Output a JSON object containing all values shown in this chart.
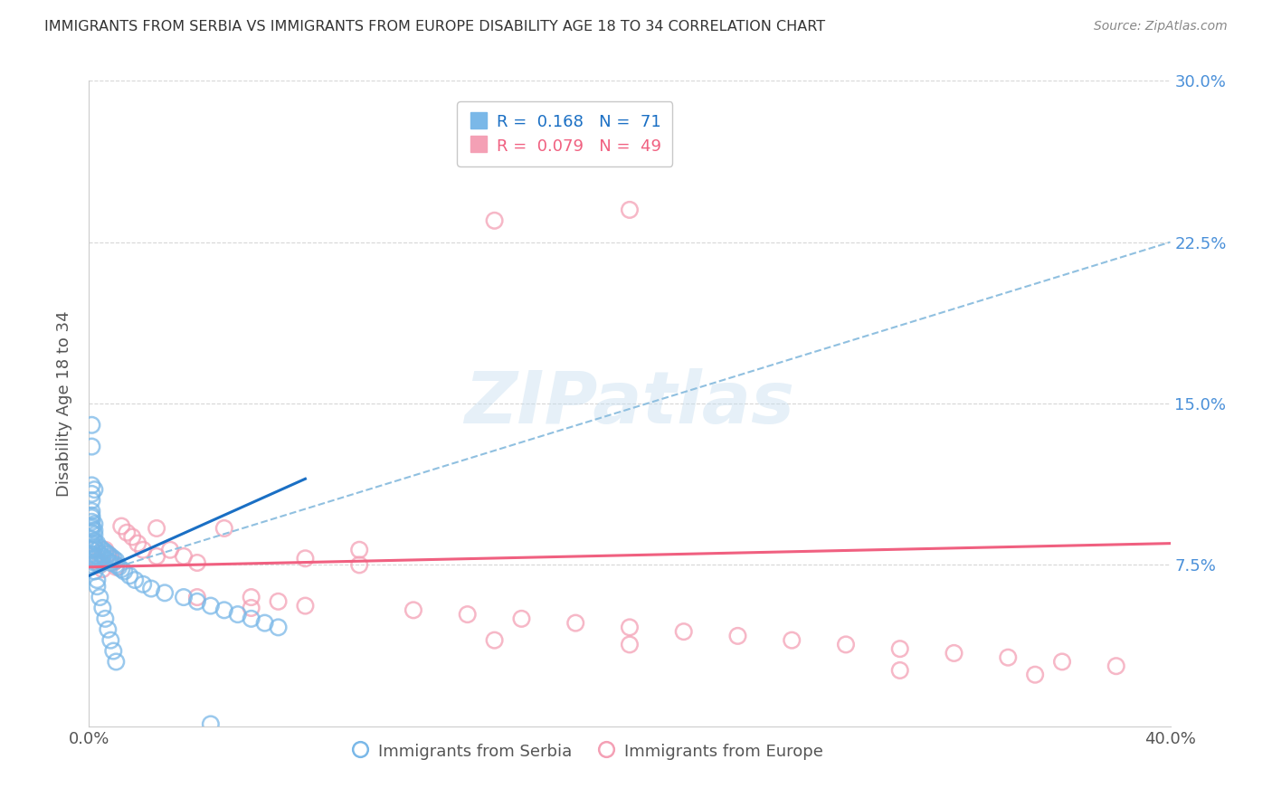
{
  "title": "IMMIGRANTS FROM SERBIA VS IMMIGRANTS FROM EUROPE DISABILITY AGE 18 TO 34 CORRELATION CHART",
  "source": "Source: ZipAtlas.com",
  "ylabel": "Disability Age 18 to 34",
  "xlim": [
    0.0,
    0.4
  ],
  "ylim": [
    0.0,
    0.3
  ],
  "serbia_R": 0.168,
  "serbia_N": 71,
  "europe_R": 0.079,
  "europe_N": 49,
  "serbia_color": "#7ab8e8",
  "europe_color": "#f4a0b5",
  "serbia_line_color": "#1a6fc4",
  "europe_line_color": "#f06080",
  "dashed_line_color": "#90c0e0",
  "background_color": "#ffffff",
  "grid_color": "#cccccc",
  "tick_label_color_right": "#4a90d9",
  "watermark": "ZIPatlas",
  "serbia_x": [
    0.001,
    0.001,
    0.001,
    0.001,
    0.001,
    0.001,
    0.001,
    0.001,
    0.001,
    0.001,
    0.001,
    0.001,
    0.001,
    0.001,
    0.001,
    0.002,
    0.002,
    0.002,
    0.002,
    0.002,
    0.002,
    0.002,
    0.003,
    0.003,
    0.003,
    0.003,
    0.004,
    0.004,
    0.004,
    0.005,
    0.005,
    0.005,
    0.006,
    0.006,
    0.007,
    0.007,
    0.008,
    0.008,
    0.009,
    0.01,
    0.01,
    0.011,
    0.012,
    0.013,
    0.015,
    0.017,
    0.02,
    0.023,
    0.028,
    0.035,
    0.04,
    0.045,
    0.05,
    0.055,
    0.06,
    0.065,
    0.07,
    0.001,
    0.001,
    0.002,
    0.002,
    0.003,
    0.003,
    0.004,
    0.005,
    0.006,
    0.007,
    0.008,
    0.009,
    0.01,
    0.045
  ],
  "serbia_y": [
    0.085,
    0.087,
    0.09,
    0.092,
    0.093,
    0.095,
    0.097,
    0.098,
    0.1,
    0.105,
    0.108,
    0.112,
    0.08,
    0.082,
    0.075,
    0.083,
    0.086,
    0.089,
    0.091,
    0.094,
    0.078,
    0.076,
    0.085,
    0.082,
    0.079,
    0.076,
    0.083,
    0.08,
    0.077,
    0.082,
    0.079,
    0.076,
    0.081,
    0.078,
    0.08,
    0.077,
    0.079,
    0.076,
    0.078,
    0.077,
    0.075,
    0.074,
    0.073,
    0.072,
    0.07,
    0.068,
    0.066,
    0.064,
    0.062,
    0.06,
    0.058,
    0.056,
    0.054,
    0.052,
    0.05,
    0.048,
    0.046,
    0.14,
    0.13,
    0.11,
    0.072,
    0.068,
    0.065,
    0.06,
    0.055,
    0.05,
    0.045,
    0.04,
    0.035,
    0.03,
    0.001
  ],
  "europe_x": [
    0.001,
    0.002,
    0.003,
    0.004,
    0.005,
    0.006,
    0.007,
    0.008,
    0.009,
    0.01,
    0.012,
    0.014,
    0.016,
    0.018,
    0.02,
    0.025,
    0.03,
    0.035,
    0.04,
    0.05,
    0.06,
    0.07,
    0.08,
    0.1,
    0.12,
    0.14,
    0.16,
    0.18,
    0.2,
    0.22,
    0.24,
    0.26,
    0.28,
    0.3,
    0.32,
    0.34,
    0.36,
    0.38,
    0.15,
    0.2,
    0.025,
    0.04,
    0.06,
    0.08,
    0.1,
    0.15,
    0.2,
    0.3,
    0.35
  ],
  "europe_y": [
    0.082,
    0.079,
    0.077,
    0.075,
    0.073,
    0.082,
    0.08,
    0.078,
    0.076,
    0.074,
    0.093,
    0.09,
    0.088,
    0.085,
    0.082,
    0.079,
    0.082,
    0.079,
    0.076,
    0.092,
    0.06,
    0.058,
    0.056,
    0.082,
    0.054,
    0.052,
    0.05,
    0.048,
    0.046,
    0.044,
    0.042,
    0.04,
    0.038,
    0.036,
    0.034,
    0.032,
    0.03,
    0.028,
    0.235,
    0.24,
    0.092,
    0.06,
    0.055,
    0.078,
    0.075,
    0.04,
    0.038,
    0.026,
    0.024
  ],
  "serbia_line_x": [
    0.0,
    0.08
  ],
  "serbia_line_y": [
    0.07,
    0.115
  ],
  "europe_line_x": [
    0.0,
    0.4
  ],
  "europe_line_y": [
    0.074,
    0.085
  ],
  "dashed_line_x": [
    0.0,
    0.4
  ],
  "dashed_line_y": [
    0.07,
    0.225
  ]
}
